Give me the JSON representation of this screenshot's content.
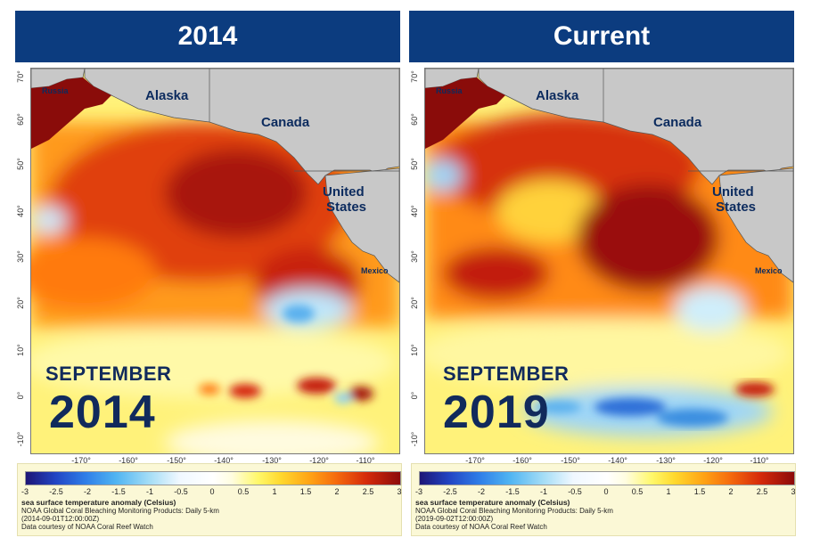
{
  "panels": [
    {
      "header": "2014",
      "month": "SEPTEMBER",
      "year": "2014",
      "legend_date": "(2014-09-01T12:00:00Z)"
    },
    {
      "header": "Current",
      "month": "SEPTEMBER",
      "year": "2019",
      "legend_date": "(2019-09-02T12:00:00Z)"
    }
  ],
  "map": {
    "land_labels": [
      "Russia",
      "Alaska",
      "Canada",
      "United",
      "States",
      "Mexico"
    ],
    "lat_ticks": [
      "70°",
      "60°",
      "50°",
      "40°",
      "30°",
      "20°",
      "10°",
      "0°",
      "-10°"
    ],
    "lon_ticks": [
      "-170°",
      "-160°",
      "-150°",
      "-140°",
      "-130°",
      "-120°",
      "-110°"
    ],
    "land_color": "#c8c8c8",
    "warm_color": "#b81a0a",
    "cold_color": "#3a8ee0"
  },
  "legend": {
    "ticks": [
      "-3",
      "-2.5",
      "-2",
      "-1.5",
      "-1",
      "-0.5",
      "0",
      "0.5",
      "1",
      "1.5",
      "2",
      "2.5",
      "3"
    ],
    "title": "sea surface temperature anomaly (Celsius)",
    "source": "NOAA Global Coral Bleaching Monitoring Products: Daily 5-km",
    "credit": "Data courtesy of NOAA Coral Reef Watch"
  }
}
